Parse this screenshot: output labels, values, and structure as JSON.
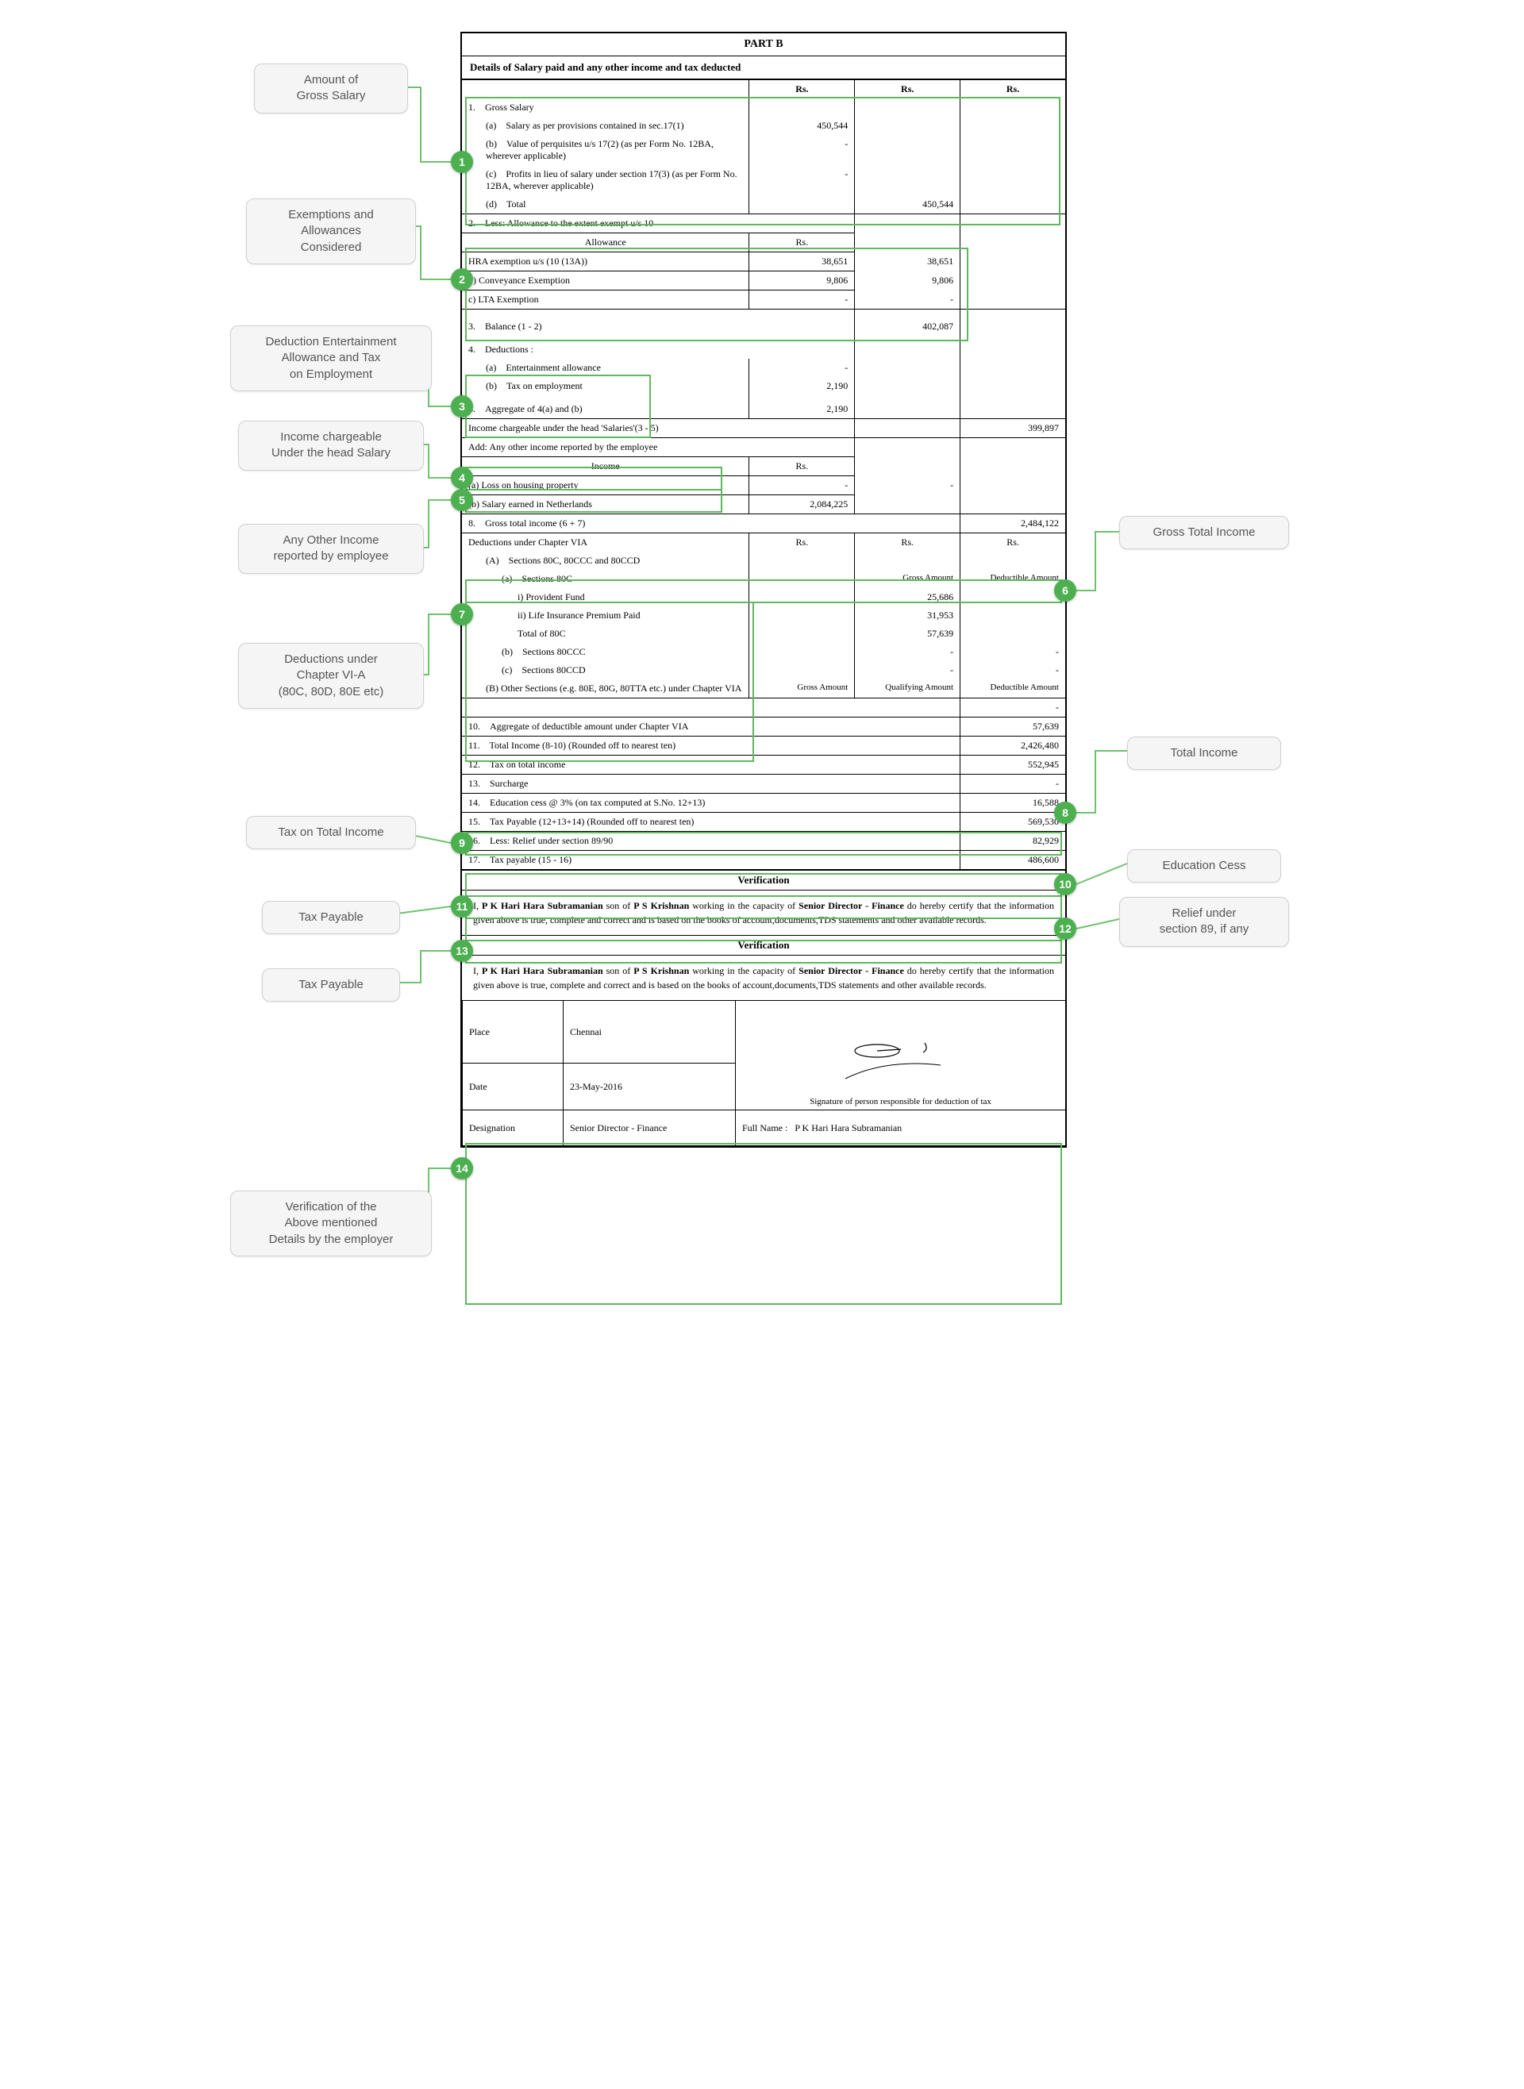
{
  "header": {
    "part": "PART B",
    "subtitle": "Details of Salary paid and any other income and tax deducted",
    "rs": "Rs."
  },
  "s1": {
    "title": "1. Gross Salary",
    "a": "(a) Salary as per provisions contained in sec.17(1)",
    "a_val": "450,544",
    "b": "(b) Value of perquisites u/s 17(2) (as per Form No. 12BA, wherever applicable)",
    "b_val": "-",
    "c": "(c) Profits in lieu of salary under section 17(3) (as per Form No. 12BA, wherever applicable)",
    "c_val": "-",
    "d": "(d) Total",
    "d_val": "450,544"
  },
  "s2": {
    "title": "2. Less: Allowance to the extent exempt u/s 10",
    "allowance": "Allowance",
    "hra": "HRA exemption u/s (10 (13A))",
    "hra_v1": "38,651",
    "hra_v2": "38,651",
    "conv": "b) Conveyance Exemption",
    "conv_v1": "9,806",
    "conv_v2": "9,806",
    "lta": "c) LTA Exemption",
    "lta_v1": "-",
    "lta_v2": "-"
  },
  "s3": {
    "title": "3. Balance (1 - 2)",
    "val": "402,087"
  },
  "s4": {
    "title": "4. Deductions :",
    "a": "(a) Entertainment allowance",
    "a_val": "-",
    "b": "(b) Tax on employment",
    "b_val": "2,190"
  },
  "s5": {
    "title": "5. Aggregate of 4(a) and (b)",
    "val": "2,190"
  },
  "s6": {
    "title": "Income chargeable under the head 'Salaries'(3 - 5)",
    "val": "399,897"
  },
  "s7": {
    "title": "Add: Any other income reported by the employee",
    "income": "Income",
    "a": "(a)  Loss on housing property",
    "a_v1": "-",
    "a_v2": "-",
    "b": "(b)  Salary earned in Netherlands",
    "b_v1": "2,084,225"
  },
  "s8": {
    "title": "8. Gross total income (6 + 7)",
    "val": "2,484,122"
  },
  "s9": {
    "title": "Deductions under Chapter VIA",
    "A": "(A) Sections 80C, 80CCC and 80CCD",
    "a": "(a) Sections 80C",
    "a_i": "i)  Provident Fund",
    "a_i_v": "25,686",
    "a_ii": "ii)  Life Insurance Premium Paid",
    "a_ii_v": "31,953",
    "a_tot": "Total of 80C",
    "a_tot_v": "57,639",
    "b": "(b) Sections 80CCC",
    "b_v": "-",
    "b_v2": "-",
    "c": "(c) Sections 80CCD",
    "c_v": "-",
    "c_v2": "-",
    "B": "(B)  Other Sections (e.g. 80E, 80G, 80TTA etc.) under Chapter VIA",
    "B_v": "-",
    "gross": "Gross Amount",
    "qual": "Qualifying Amount",
    "ded": "Deductible Amount"
  },
  "s10": {
    "title": "10. Aggregate of deductible amount under Chapter VIA",
    "val": "57,639"
  },
  "s11": {
    "title": "11. Total Income (8-10) (Rounded off to nearest ten)",
    "val": "2,426,480"
  },
  "s12": {
    "title": "12. Tax on total income",
    "val": "552,945"
  },
  "s13": {
    "title": "13. Surcharge",
    "val": "-"
  },
  "s14": {
    "title": "14. Education cess @ 3% (on tax computed at S.No. 12+13)",
    "val": "16,588"
  },
  "s15": {
    "title": "15. Tax Payable (12+13+14) (Rounded off to nearest ten)",
    "val": "569,530"
  },
  "s16": {
    "title": "16. Less: Relief under section 89/90",
    "val": "82,929"
  },
  "s17": {
    "title": "17. Tax payable (15 - 16)",
    "val": "486,600"
  },
  "verif": {
    "heading": "Verification",
    "text": "I, <b>P K Hari Hara Subramanian</b> son of <b>P S Krishnan</b> working in the capacity of <b>Senior Director - Finance</b> do hereby certify that the information given above is true, complete and correct and is based on the books of account,documents,TDS statements and other available records.",
    "place_lbl": "Place",
    "place": "Chennai",
    "date_lbl": "Date",
    "date": "23-May-2016",
    "desig_lbl": "Designation",
    "desig": "Senior Director - Finance",
    "sig_caption": "Signature of person responsible for deduction of tax",
    "fullname_lbl": "Full Name :",
    "fullname": "P K Hari Hara Subramanian"
  },
  "callouts": {
    "c1": "Amount of\nGross Salary",
    "c2": "Exemptions and\nAllowances\nConsidered",
    "c3": "Deduction Entertainment\nAllowance and Tax\non Employment",
    "c4": "Income chargeable\nUnder the head Salary",
    "c5": "Any Other Income\nreported by employee",
    "c7": "Deductions under\nChapter VI-A\n(80C, 80D, 80E etc)",
    "c9": "Tax on Total Income",
    "c11": "Tax Payable",
    "c13": "Tax Payable",
    "c14": "Verification of the\nAbove mentioned\nDetails by the employer",
    "c6": "Gross Total Income",
    "c8": "Total Income",
    "c10": "Education Cess",
    "c12": "Relief under\nsection 89, if any"
  },
  "style": {
    "marker_bg": "#4caf50",
    "hl_border": "#5fb85f",
    "callout_bg": "#f5f5f5",
    "connector": "#6fc26f"
  }
}
